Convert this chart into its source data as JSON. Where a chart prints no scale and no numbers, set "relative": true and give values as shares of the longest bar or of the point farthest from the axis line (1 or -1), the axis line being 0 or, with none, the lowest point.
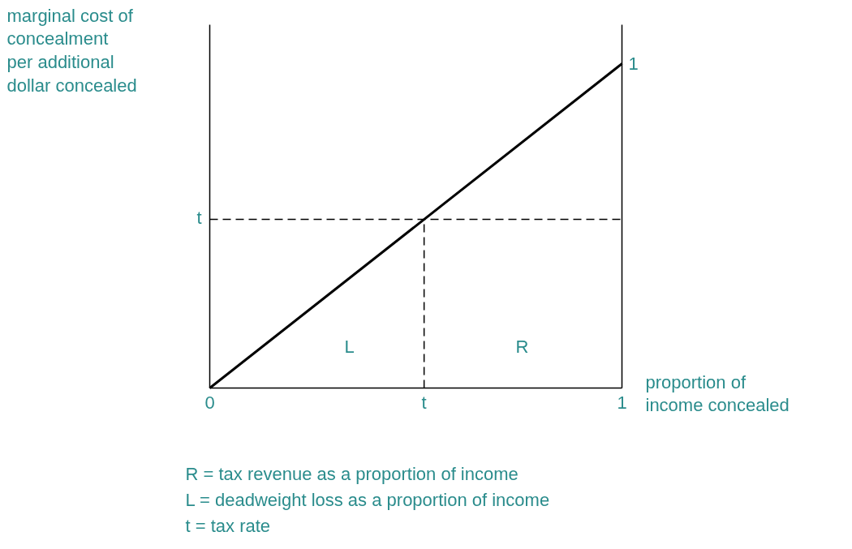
{
  "chart_data": {
    "type": "line",
    "relative": true,
    "ylabel": "marginal cost of\nconcealment\nper additional\ndollar concealed",
    "xlabel": "proportion of\nincome concealed",
    "xlim": [
      0,
      1
    ],
    "xticks": [
      0,
      {
        "value": 0.52,
        "label": "t"
      },
      1
    ],
    "series": [
      {
        "x": [
          0,
          1
        ],
        "values": [
          0,
          1
        ],
        "color": "#000000",
        "line_style": "solid"
      },
      {
        "x": [
          0,
          1
        ],
        "values": [
          0.52,
          0.52
        ],
        "color": "#000000",
        "line_style": "dashed"
      },
      {
        "x": [
          0.52,
          0.52
        ],
        "values": [
          0,
          0.52
        ],
        "color": "#000000",
        "line_style": "dashed"
      }
    ],
    "annotations": [
      "t",
      "1",
      "L",
      "R",
      "R = tax revenue as a proportion of income",
      "L = deadweight loss as a proportion of income",
      "t  = tax rate"
    ]
  }
}
